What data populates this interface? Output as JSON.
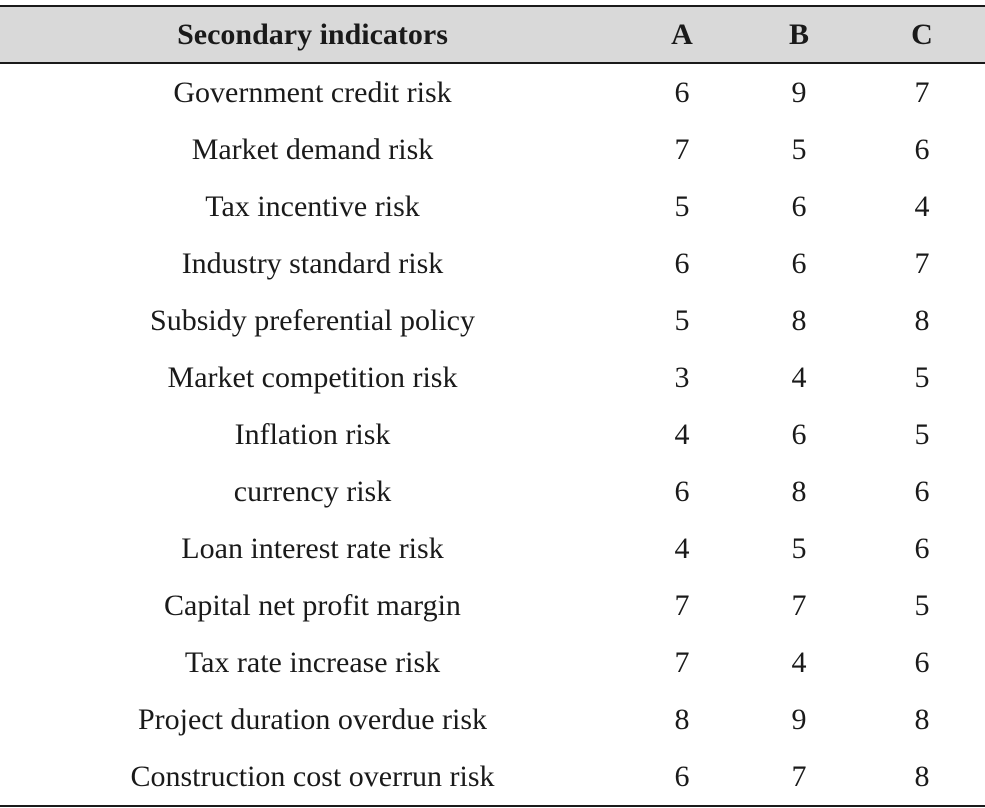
{
  "header": {
    "col_indicator": "Secondary indicators",
    "col_a": "A",
    "col_b": "B",
    "col_c": "C"
  },
  "rows": [
    {
      "indicator": "Government credit risk",
      "a": "6",
      "b": "9",
      "c": "7"
    },
    {
      "indicator": "Market demand risk",
      "a": "7",
      "b": "5",
      "c": "6"
    },
    {
      "indicator": "Tax incentive risk",
      "a": "5",
      "b": "6",
      "c": "4"
    },
    {
      "indicator": "Industry standard risk",
      "a": "6",
      "b": "6",
      "c": "7"
    },
    {
      "indicator": "Subsidy preferential policy",
      "a": "5",
      "b": "8",
      "c": "8"
    },
    {
      "indicator": "Market competition risk",
      "a": "3",
      "b": "4",
      "c": "5"
    },
    {
      "indicator": "Inflation risk",
      "a": "4",
      "b": "6",
      "c": "5"
    },
    {
      "indicator": "currency risk",
      "a": "6",
      "b": "8",
      "c": "6"
    },
    {
      "indicator": "Loan interest rate risk",
      "a": "4",
      "b": "5",
      "c": "6"
    },
    {
      "indicator": "Capital net profit margin",
      "a": "7",
      "b": "7",
      "c": "5"
    },
    {
      "indicator": "Tax rate increase risk",
      "a": "7",
      "b": "4",
      "c": "6"
    },
    {
      "indicator": "Project duration overdue risk",
      "a": "8",
      "b": "9",
      "c": "8"
    },
    {
      "indicator": "Construction cost overrun risk",
      "a": "6",
      "b": "7",
      "c": "8"
    }
  ],
  "colors": {
    "header_background": "#d9d9d9",
    "rule": "#1a1a1a",
    "text": "#1a1a1a"
  }
}
